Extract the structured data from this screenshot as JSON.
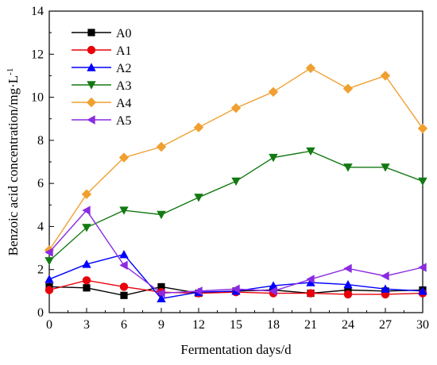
{
  "chart_data": {
    "type": "line",
    "title": "",
    "xlabel": "Fermentation days/d",
    "ylabel": "Benzoic acid concentration/mg·L",
    "ylabel_sup": "-1",
    "xlim": [
      0,
      30
    ],
    "ylim": [
      0,
      14
    ],
    "x_ticks": [
      "0",
      "3",
      "6",
      "9",
      "12",
      "15",
      "18",
      "21",
      "24",
      "27",
      "30"
    ],
    "y_ticks": [
      "0",
      "2",
      "4",
      "6",
      "8",
      "10",
      "12",
      "14"
    ],
    "x": [
      0,
      3,
      6,
      9,
      12,
      15,
      18,
      21,
      24,
      27,
      30
    ],
    "grid": false,
    "legend_position": "top-left",
    "series": [
      {
        "name": "A0",
        "color": "#000000",
        "marker": "square",
        "values": [
          1.2,
          1.15,
          0.8,
          1.2,
          0.9,
          1.0,
          1.05,
          0.9,
          1.05,
          1.0,
          1.05
        ]
      },
      {
        "name": "A1",
        "color": "#e8000b",
        "marker": "circle",
        "values": [
          1.05,
          1.5,
          1.2,
          0.95,
          0.9,
          0.95,
          0.9,
          0.9,
          0.85,
          0.85,
          0.9
        ]
      },
      {
        "name": "A2",
        "color": "#0000ff",
        "marker": "triangle-up",
        "values": [
          1.55,
          2.25,
          2.7,
          0.65,
          0.95,
          1.0,
          1.25,
          1.4,
          1.3,
          1.1,
          1.0
        ]
      },
      {
        "name": "A3",
        "color": "#137a13",
        "marker": "triangle-down",
        "values": [
          2.4,
          3.95,
          4.75,
          4.55,
          5.35,
          6.1,
          7.2,
          7.5,
          6.75,
          6.75,
          6.1
        ]
      },
      {
        "name": "A4",
        "color": "#f0a030",
        "marker": "diamond",
        "values": [
          2.9,
          5.5,
          7.2,
          7.7,
          8.6,
          9.5,
          10.25,
          11.35,
          10.4,
          11.0,
          8.55
        ]
      },
      {
        "name": "A5",
        "color": "#8a2be2",
        "marker": "triangle-left",
        "values": [
          2.8,
          4.75,
          2.2,
          0.9,
          1.0,
          1.1,
          1.0,
          1.55,
          2.05,
          1.7,
          2.1
        ]
      }
    ]
  }
}
